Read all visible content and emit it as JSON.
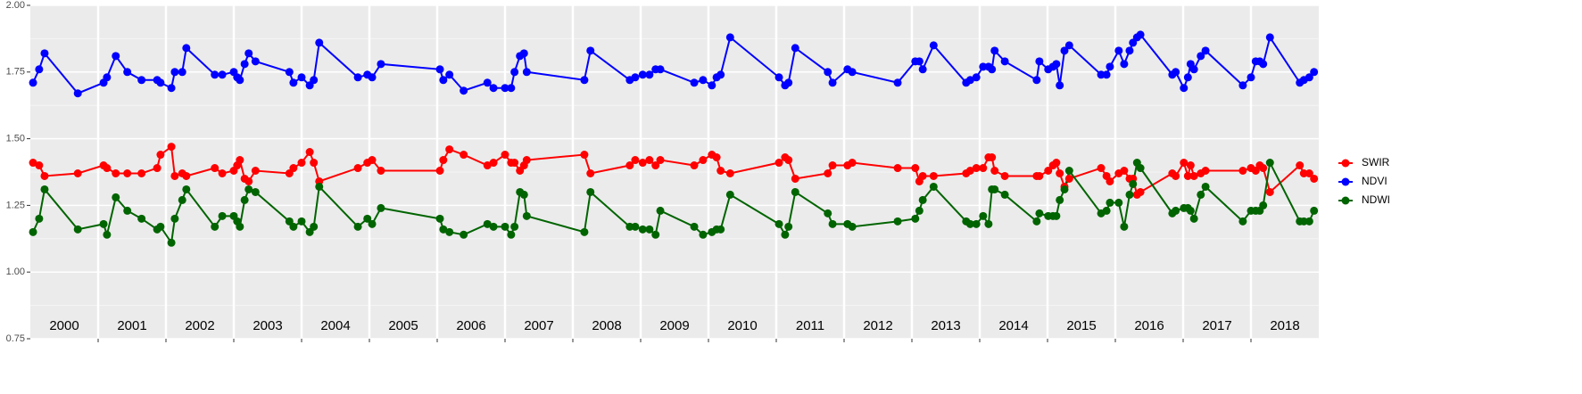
{
  "chart_data": {
    "type": "line",
    "x": [
      2000.04,
      2000.13,
      2000.21,
      2000.7,
      2001.08,
      2001.13,
      2001.26,
      2001.43,
      2001.64,
      2001.87,
      2001.92,
      2002.08,
      2002.13,
      2002.24,
      2002.3,
      2002.72,
      2002.83,
      2003.0,
      2003.05,
      2003.09,
      2003.16,
      2003.22,
      2003.32,
      2003.82,
      2003.88,
      2004.0,
      2004.12,
      2004.18,
      2004.26,
      2004.83,
      2004.97,
      2005.04,
      2005.17,
      2006.04,
      2006.09,
      2006.18,
      2006.39,
      2006.74,
      2006.83,
      2007.0,
      2007.09,
      2007.14,
      2007.22,
      2007.28,
      2007.32,
      2008.17,
      2008.26,
      2008.84,
      2008.92,
      2009.03,
      2009.13,
      2009.22,
      2009.29,
      2009.79,
      2009.92,
      2010.05,
      2010.12,
      2010.18,
      2010.32,
      2011.04,
      2011.13,
      2011.18,
      2011.28,
      2011.76,
      2011.83,
      2012.05,
      2012.12,
      2012.79,
      2013.05,
      2013.11,
      2013.16,
      2013.32,
      2013.8,
      2013.86,
      2013.95,
      2014.05,
      2014.13,
      2014.18,
      2014.22,
      2014.37,
      2014.84,
      2014.88,
      2015.01,
      2015.08,
      2015.13,
      2015.18,
      2015.25,
      2015.32,
      2015.79,
      2015.87,
      2015.92,
      2016.05,
      2016.13,
      2016.21,
      2016.26,
      2016.32,
      2016.37,
      2016.84,
      2016.89,
      2017.01,
      2017.07,
      2017.11,
      2017.16,
      2017.26,
      2017.33,
      2017.88,
      2018.0,
      2018.07,
      2018.13,
      2018.18,
      2018.28,
      2018.72,
      2018.78,
      2018.86,
      2018.93
    ],
    "series": [
      {
        "name": "SWIR",
        "color": "#ff0000",
        "values": [
          1.41,
          1.4,
          1.36,
          1.37,
          1.4,
          1.39,
          1.37,
          1.37,
          1.37,
          1.39,
          1.44,
          1.47,
          1.36,
          1.37,
          1.36,
          1.39,
          1.37,
          1.38,
          1.4,
          1.42,
          1.35,
          1.34,
          1.38,
          1.37,
          1.39,
          1.41,
          1.45,
          1.41,
          1.34,
          1.39,
          1.41,
          1.42,
          1.38,
          1.38,
          1.42,
          1.46,
          1.44,
          1.4,
          1.41,
          1.44,
          1.41,
          1.41,
          1.38,
          1.4,
          1.42,
          1.44,
          1.37,
          1.4,
          1.42,
          1.41,
          1.42,
          1.4,
          1.42,
          1.4,
          1.42,
          1.44,
          1.43,
          1.38,
          1.37,
          1.41,
          1.43,
          1.42,
          1.35,
          1.37,
          1.4,
          1.4,
          1.41,
          1.39,
          1.39,
          1.34,
          1.36,
          1.36,
          1.37,
          1.38,
          1.39,
          1.39,
          1.43,
          1.43,
          1.38,
          1.36,
          1.36,
          1.36,
          1.38,
          1.4,
          1.41,
          1.37,
          1.32,
          1.35,
          1.39,
          1.36,
          1.34,
          1.37,
          1.38,
          1.35,
          1.35,
          1.29,
          1.3,
          1.37,
          1.36,
          1.41,
          1.36,
          1.4,
          1.36,
          1.37,
          1.38,
          1.38,
          1.39,
          1.38,
          1.4,
          1.39,
          1.3,
          1.4,
          1.37,
          1.37,
          1.35
        ]
      },
      {
        "name": "NDVI",
        "color": "#0000ff",
        "values": [
          1.71,
          1.76,
          1.82,
          1.67,
          1.71,
          1.73,
          1.81,
          1.75,
          1.72,
          1.72,
          1.71,
          1.69,
          1.75,
          1.75,
          1.84,
          1.74,
          1.74,
          1.75,
          1.73,
          1.72,
          1.78,
          1.82,
          1.79,
          1.75,
          1.71,
          1.73,
          1.7,
          1.72,
          1.86,
          1.73,
          1.74,
          1.73,
          1.78,
          1.76,
          1.72,
          1.74,
          1.68,
          1.71,
          1.69,
          1.69,
          1.69,
          1.75,
          1.81,
          1.82,
          1.75,
          1.72,
          1.83,
          1.72,
          1.73,
          1.74,
          1.74,
          1.76,
          1.76,
          1.71,
          1.72,
          1.7,
          1.73,
          1.74,
          1.88,
          1.73,
          1.7,
          1.71,
          1.84,
          1.75,
          1.71,
          1.76,
          1.75,
          1.71,
          1.79,
          1.79,
          1.76,
          1.85,
          1.71,
          1.72,
          1.73,
          1.77,
          1.77,
          1.76,
          1.83,
          1.79,
          1.72,
          1.79,
          1.76,
          1.77,
          1.78,
          1.7,
          1.83,
          1.85,
          1.74,
          1.74,
          1.77,
          1.83,
          1.78,
          1.83,
          1.86,
          1.88,
          1.89,
          1.74,
          1.75,
          1.69,
          1.73,
          1.78,
          1.76,
          1.81,
          1.83,
          1.7,
          1.73,
          1.79,
          1.79,
          1.78,
          1.88,
          1.71,
          1.72,
          1.73,
          1.75
        ]
      },
      {
        "name": "NDWI",
        "color": "#006400",
        "values": [
          1.15,
          1.2,
          1.31,
          1.16,
          1.18,
          1.14,
          1.28,
          1.23,
          1.2,
          1.16,
          1.17,
          1.11,
          1.2,
          1.27,
          1.31,
          1.17,
          1.21,
          1.21,
          1.19,
          1.17,
          1.27,
          1.31,
          1.3,
          1.19,
          1.17,
          1.19,
          1.15,
          1.17,
          1.32,
          1.17,
          1.2,
          1.18,
          1.24,
          1.2,
          1.16,
          1.15,
          1.14,
          1.18,
          1.17,
          1.17,
          1.14,
          1.17,
          1.3,
          1.29,
          1.21,
          1.15,
          1.3,
          1.17,
          1.17,
          1.16,
          1.16,
          1.14,
          1.23,
          1.17,
          1.14,
          1.15,
          1.16,
          1.16,
          1.29,
          1.18,
          1.14,
          1.17,
          1.3,
          1.22,
          1.18,
          1.18,
          1.17,
          1.19,
          1.2,
          1.23,
          1.27,
          1.32,
          1.19,
          1.18,
          1.18,
          1.21,
          1.18,
          1.31,
          1.31,
          1.29,
          1.19,
          1.22,
          1.21,
          1.21,
          1.21,
          1.27,
          1.31,
          1.38,
          1.22,
          1.23,
          1.26,
          1.26,
          1.17,
          1.29,
          1.33,
          1.41,
          1.39,
          1.22,
          1.23,
          1.24,
          1.24,
          1.23,
          1.2,
          1.29,
          1.32,
          1.19,
          1.23,
          1.23,
          1.23,
          1.25,
          1.41,
          1.19,
          1.19,
          1.19,
          1.23
        ]
      }
    ],
    "xlim": [
      2000,
      2019
    ],
    "xticks": [
      2001,
      2002,
      2003,
      2004,
      2005,
      2006,
      2007,
      2008,
      2009,
      2010,
      2011,
      2012,
      2013,
      2014,
      2015,
      2016,
      2017,
      2018
    ],
    "ylim": [
      0.75,
      2.0
    ],
    "yticks": [
      {
        "value": 0.75,
        "label": "0.75"
      },
      {
        "value": 1.0,
        "label": "1.00"
      },
      {
        "value": 1.25,
        "label": "1.25"
      },
      {
        "value": 1.5,
        "label": "1.50"
      },
      {
        "value": 1.75,
        "label": "1.75"
      },
      {
        "value": 2.0,
        "label": "2.00"
      }
    ],
    "yminor": [
      0.875,
      1.125,
      1.375,
      1.625,
      1.875
    ],
    "year_labels": [
      "2000",
      "2001",
      "2002",
      "2003",
      "2004",
      "2005",
      "2006",
      "2007",
      "2008",
      "2009",
      "2010",
      "2011",
      "2012",
      "2013",
      "2014",
      "2015",
      "2016",
      "2017",
      "2018"
    ],
    "grid": true,
    "legend": "right"
  }
}
